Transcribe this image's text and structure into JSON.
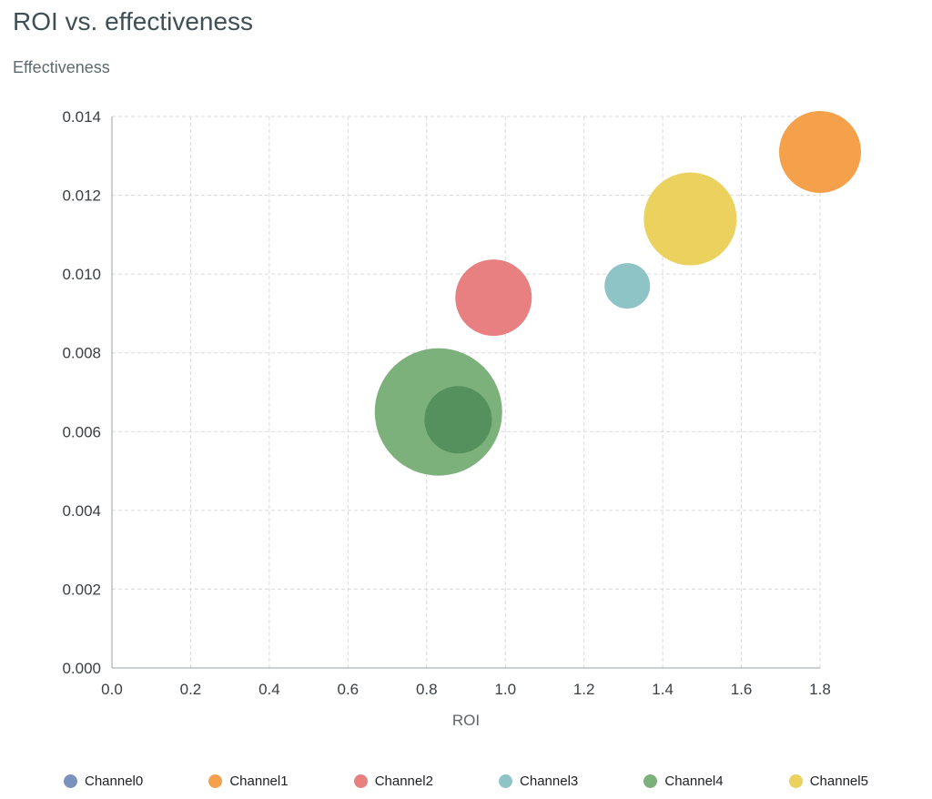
{
  "chart_data": {
    "type": "scatter",
    "subtype": "bubble",
    "title": "ROI vs. effectiveness",
    "xlabel": "ROI",
    "ylabel": "Effectiveness",
    "xlim": [
      0.0,
      1.8
    ],
    "ylim": [
      0.0,
      0.014
    ],
    "x_ticks": [
      0.0,
      0.2,
      0.4,
      0.6,
      0.8,
      1.0,
      1.2,
      1.4,
      1.6,
      1.8
    ],
    "y_ticks": [
      0.0,
      0.002,
      0.004,
      0.006,
      0.008,
      0.01,
      0.012,
      0.014
    ],
    "grid": "dashed",
    "legend_position": "bottom",
    "colors": {
      "grid_line": "#d7dadc",
      "axis_line": "#9aa0a6",
      "tick_label": "#3c4043",
      "axis_title": "#5f6368",
      "chart_title": "#3f4f54"
    },
    "series": [
      {
        "name": "Channel0",
        "color": "#7b93bc",
        "rendered_color": "#55915c",
        "x": 0.88,
        "y": 0.0063,
        "radius_px": 37
      },
      {
        "name": "Channel1",
        "color": "#f5a04a",
        "x": 1.8,
        "y": 0.0131,
        "radius_px": 45
      },
      {
        "name": "Channel2",
        "color": "#e87f80",
        "x": 0.97,
        "y": 0.0094,
        "radius_px": 42
      },
      {
        "name": "Channel3",
        "color": "#8fc4c7",
        "x": 1.31,
        "y": 0.0097,
        "radius_px": 25
      },
      {
        "name": "Channel4",
        "color": "#7db17c",
        "x": 0.83,
        "y": 0.0065,
        "radius_px": 70
      },
      {
        "name": "Channel5",
        "color": "#ebd15e",
        "x": 1.47,
        "y": 0.0114,
        "radius_px": 51
      }
    ]
  }
}
